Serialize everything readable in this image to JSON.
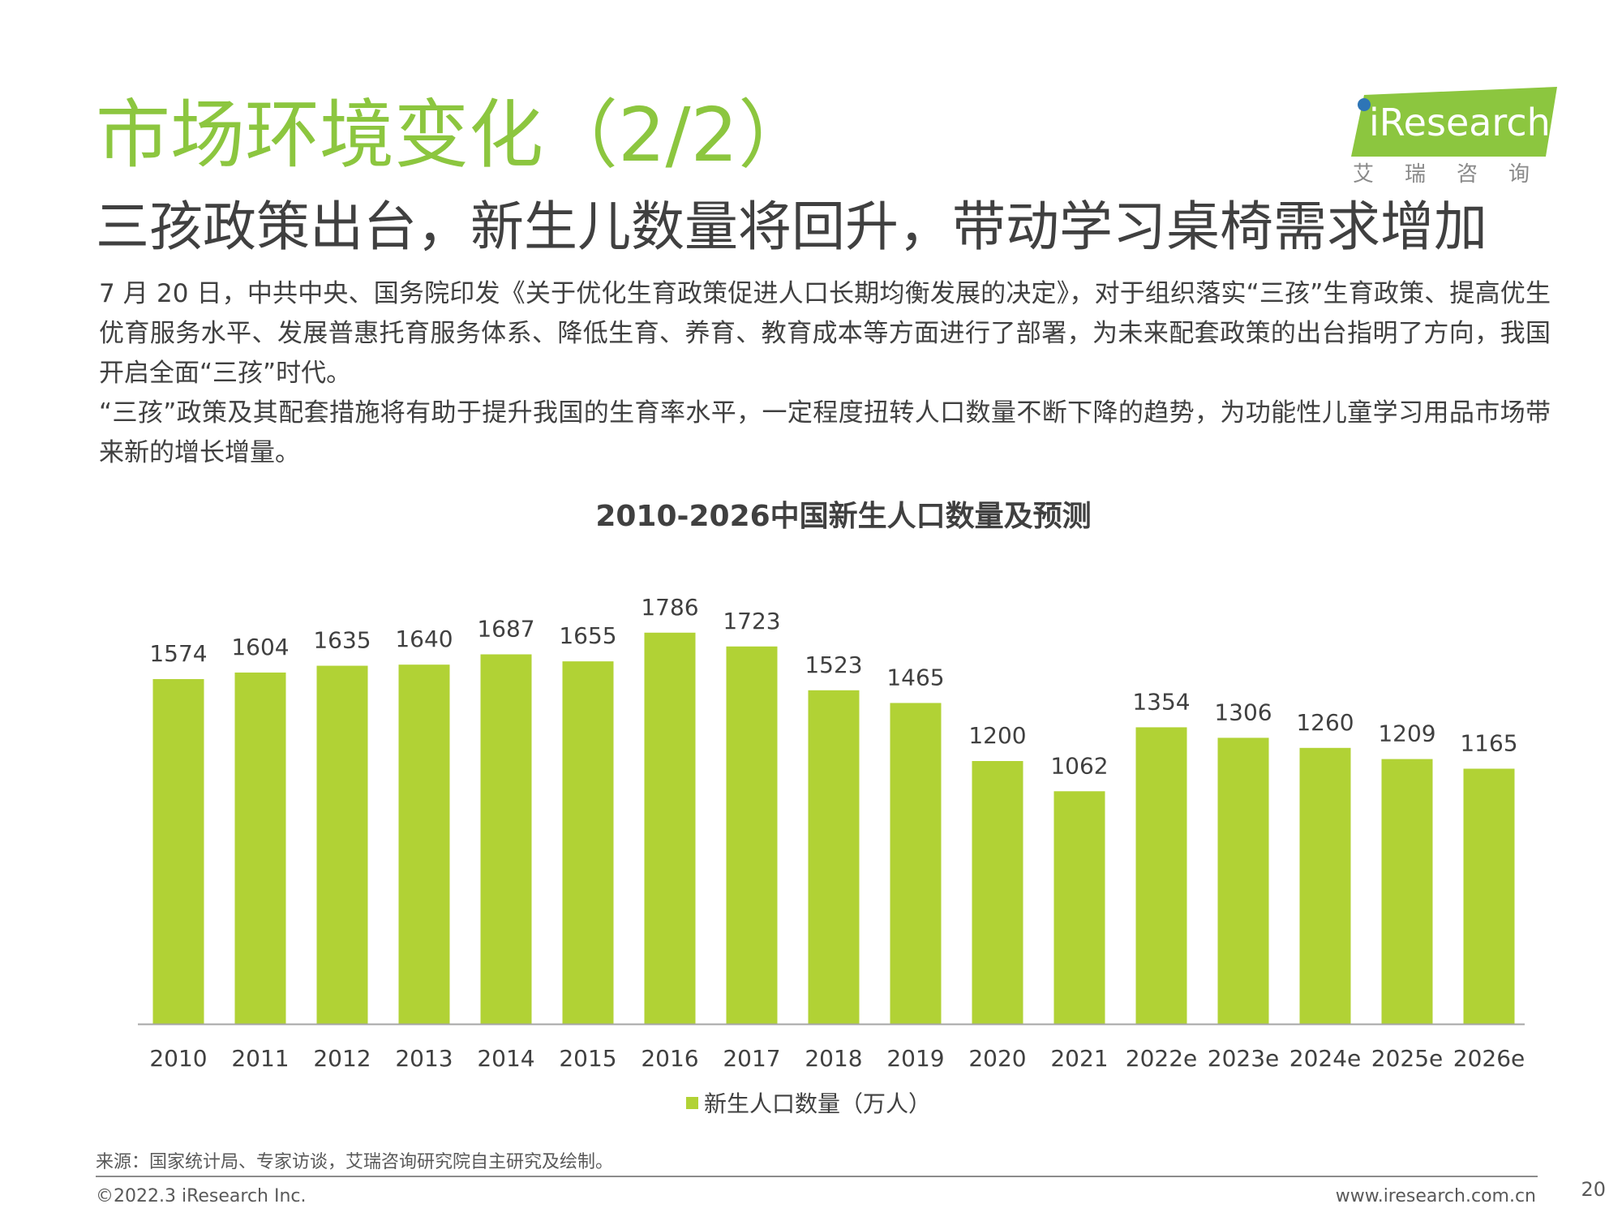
{
  "header": {
    "title": "市场环境变化（2/2）",
    "subtitle": "三孩政策出台，新生儿数量将回升，带动学习桌椅需求增加"
  },
  "logo": {
    "text": "iResearch",
    "cn": "艾瑞咨询",
    "brand_color": "#8cc63f",
    "dot_color": "#2e75b6"
  },
  "intro": {
    "para1": "7 月 20 日，中共中央、国务院印发《关于优化生育政策促进人口长期均衡发展的决定》，对于组织落实“三孩”生育政策、提高优生优育服务水平、发展普惠托育服务体系、降低生育、养育、教育成本等方面进行了部署，为未来配套政策的出台指明了方向，我国开启全面“三孩”时代。",
    "para2": "“三孩”政策及其配套措施将有助于提升我国的生育率水平，一定程度扭转人口数量不断下降的趋势，为功能性儿童学习用品市场带来新的增长增量。"
  },
  "chart_data": {
    "type": "bar",
    "title": "2010-2026中国新生人口数量及预测",
    "categories": [
      "2010",
      "2011",
      "2012",
      "2013",
      "2014",
      "2015",
      "2016",
      "2017",
      "2018",
      "2019",
      "2020",
      "2021",
      "2022e",
      "2023e",
      "2024e",
      "2025e",
      "2026e"
    ],
    "series": [
      {
        "name": "新生人口数量（万人）",
        "values": [
          1574,
          1604,
          1635,
          1640,
          1687,
          1655,
          1786,
          1723,
          1523,
          1465,
          1200,
          1062,
          1354,
          1306,
          1260,
          1209,
          1165
        ],
        "color": "#b1d235"
      }
    ],
    "xlabel": "",
    "ylabel": "",
    "ylim": [
      0,
      1800
    ],
    "grid": false,
    "y_axis_visible": false,
    "data_labels": true,
    "legend_position": "bottom"
  },
  "footer": {
    "source": "来源：国家统计局、专家访谈，艾瑞咨询研究院自主研究及绘制。",
    "copyright": "©2022.3 iResearch Inc.",
    "website": "www.iresearch.com.cn",
    "page": "20"
  }
}
